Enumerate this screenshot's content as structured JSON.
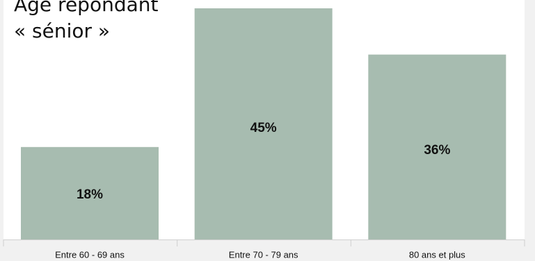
{
  "chart_data": {
    "type": "bar",
    "title_lines": [
      "Âge répondant",
      "« sénior »"
    ],
    "categories": [
      "Entre 60 - 69 ans",
      "Entre 70 - 79 ans",
      "80 ans et plus"
    ],
    "values": [
      18,
      45,
      36
    ],
    "value_labels": [
      "18%",
      "45%",
      "36%"
    ],
    "unit": "%",
    "xlabel": "",
    "ylabel": "",
    "ylim": [
      0,
      45
    ],
    "grid": false,
    "legend": "none",
    "colors": {
      "bar": "#a7bcb0",
      "background": "#f1f1f1",
      "axis": "#d0d0d0",
      "text": "#111111"
    }
  }
}
